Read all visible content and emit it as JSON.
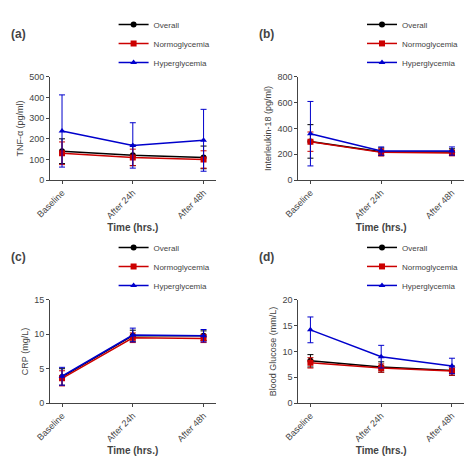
{
  "chart_data": [
    {
      "type": "line",
      "title": "(a)",
      "xlabel": "Time (hrs.)",
      "ylabel": "TNF-α (pg/ml)",
      "categories": [
        "Baseline",
        "After 24h",
        "After 48h"
      ],
      "series": [
        {
          "name": "Overall",
          "color": "#000000",
          "marker": "circle",
          "values": [
            140,
            120,
            110
          ],
          "errors": [
            60,
            50,
            55
          ]
        },
        {
          "name": "Normoglycemia",
          "color": "#cc0000",
          "marker": "square",
          "values": [
            130,
            110,
            100
          ],
          "errors": [
            55,
            40,
            42
          ]
        },
        {
          "name": "Hyperglycemia",
          "color": "#0000cc",
          "marker": "triangle",
          "values": [
            238,
            168,
            193
          ],
          "errors": [
            175,
            110,
            150
          ]
        }
      ],
      "ylim": [
        0,
        500
      ],
      "yticks": [
        0,
        100,
        200,
        300,
        400,
        500
      ],
      "grid": false,
      "legend": "upper right"
    },
    {
      "type": "line",
      "title": "(b)",
      "xlabel": "Time (hrs.)",
      "ylabel": "Interleukin-18 (pg/ml)",
      "categories": [
        "Baseline",
        "After 24h",
        "After 48h"
      ],
      "series": [
        {
          "name": "Overall",
          "color": "#000000",
          "marker": "circle",
          "values": [
            300,
            220,
            218
          ],
          "errors": [
            130,
            30,
            25
          ]
        },
        {
          "name": "Normoglycemia",
          "color": "#cc0000",
          "marker": "square",
          "values": [
            298,
            215,
            210
          ],
          "errors": [
            75,
            28,
            22
          ]
        },
        {
          "name": "Hyperglycemia",
          "color": "#0000cc",
          "marker": "triangle",
          "values": [
            360,
            225,
            225
          ],
          "errors": [
            250,
            32,
            32
          ]
        }
      ],
      "ylim": [
        0,
        800
      ],
      "yticks": [
        0,
        200,
        400,
        600,
        800
      ],
      "grid": false,
      "legend": "upper right"
    },
    {
      "type": "line",
      "title": "(c)",
      "xlabel": "Time (hrs.)",
      "ylabel": "CRP (mg/L)",
      "categories": [
        "Baseline",
        "After 24h",
        "After 48h"
      ],
      "series": [
        {
          "name": "Overall",
          "color": "#000000",
          "marker": "circle",
          "values": [
            3.8,
            9.8,
            9.8
          ],
          "errors": [
            1.2,
            0.8,
            0.7
          ]
        },
        {
          "name": "Normoglycemia",
          "color": "#cc0000",
          "marker": "square",
          "values": [
            3.6,
            9.5,
            9.4
          ],
          "errors": [
            1.1,
            0.7,
            0.6
          ]
        },
        {
          "name": "Hyperglycemia",
          "color": "#0000cc",
          "marker": "triangle",
          "values": [
            3.9,
            9.9,
            9.8
          ],
          "errors": [
            1.3,
            1.0,
            0.9
          ]
        }
      ],
      "ylim": [
        0,
        15
      ],
      "yticks": [
        0,
        5,
        10,
        15
      ],
      "grid": false,
      "legend": "upper right"
    },
    {
      "type": "line",
      "title": "(d)",
      "xlabel": "Time (hrs.)",
      "ylabel": "Blood Glucose (mm/L)",
      "categories": [
        "Baseline",
        "After 24h",
        "After 48h"
      ],
      "series": [
        {
          "name": "Overall",
          "color": "#000000",
          "marker": "circle",
          "values": [
            8.2,
            7.0,
            6.3
          ],
          "errors": [
            1.2,
            1.0,
            0.9
          ]
        },
        {
          "name": "Normoglycemia",
          "color": "#cc0000",
          "marker": "square",
          "values": [
            7.8,
            6.8,
            6.2
          ],
          "errors": [
            1.0,
            0.8,
            0.8
          ]
        },
        {
          "name": "Hyperglycemia",
          "color": "#0000cc",
          "marker": "triangle",
          "values": [
            14.2,
            9.0,
            7.2
          ],
          "errors": [
            2.5,
            2.2,
            1.5
          ]
        }
      ],
      "ylim": [
        0,
        20
      ],
      "yticks": [
        0,
        5,
        10,
        15,
        20
      ],
      "grid": false,
      "legend": "upper right"
    }
  ]
}
